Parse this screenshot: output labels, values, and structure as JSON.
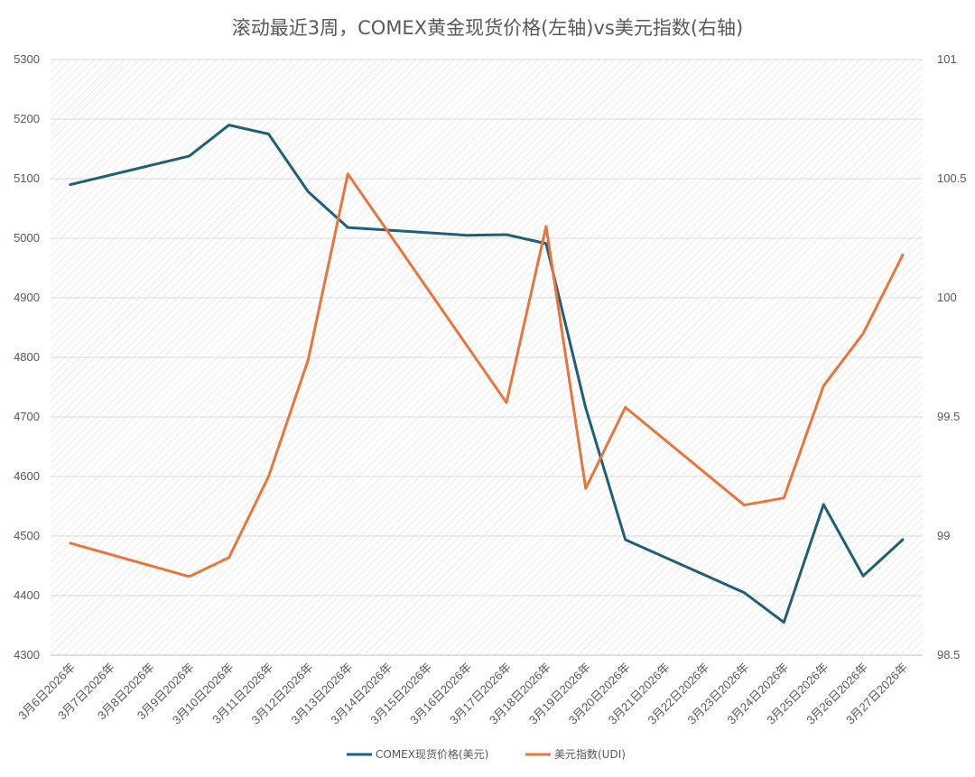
{
  "chart_data": {
    "type": "line",
    "title": "滚动最近3周，COMEX黄金现货价格(左轴)vs美元指数(右轴)",
    "categories": [
      "3月6日2026年",
      "3月7日2026年",
      "3月8日2026年",
      "3月9日2026年",
      "3月10日2026年",
      "3月11日2026年",
      "3月12日2026年",
      "3月13日2026年",
      "3月14日2026年",
      "3月15日2026年",
      "3月16日2026年",
      "3月17日2026年",
      "3月18日2026年",
      "3月19日2026年",
      "3月20日2026年",
      "3月21日2026年",
      "3月22日2026年",
      "3月23日2026年",
      "3月24日2026年",
      "3月25日2026年",
      "3月26日2026年",
      "3月27日2026年"
    ],
    "y_left": {
      "min": 4300,
      "max": 5300,
      "ticks": [
        "4300",
        "4400",
        "4500",
        "4600",
        "4700",
        "4800",
        "4900",
        "5000",
        "5100",
        "5200",
        "5300"
      ]
    },
    "y_right": {
      "min": 98.5,
      "max": 101,
      "ticks": [
        "98.5",
        "99",
        "99.5",
        "100",
        "100.5",
        "101"
      ]
    },
    "grid": true,
    "legend_position": "bottom",
    "series": [
      {
        "name": "COMEX现货价格(美元)",
        "axis": "left",
        "color": "#1f5f7a",
        "points": [
          [
            0,
            5090
          ],
          [
            3,
            5138
          ],
          [
            4,
            5190
          ],
          [
            5,
            5175
          ],
          [
            6,
            5078
          ],
          [
            7,
            5018
          ],
          [
            10,
            5005
          ],
          [
            11,
            5006
          ],
          [
            12,
            4991
          ],
          [
            13,
            4715
          ],
          [
            14,
            4494
          ],
          [
            17,
            4405
          ],
          [
            18,
            4355
          ],
          [
            19,
            4553
          ],
          [
            20,
            4433
          ],
          [
            21,
            4494
          ]
        ]
      },
      {
        "name": "美元指数(UDI)",
        "axis": "right",
        "color": "#e8763a",
        "points": [
          [
            0,
            98.97
          ],
          [
            3,
            98.83
          ],
          [
            4,
            98.91
          ],
          [
            5,
            99.25
          ],
          [
            6,
            99.74
          ],
          [
            7,
            100.52
          ],
          [
            11,
            99.56
          ],
          [
            12,
            100.3
          ],
          [
            13,
            99.2
          ],
          [
            14,
            99.54
          ],
          [
            17,
            99.13
          ],
          [
            18,
            99.16
          ],
          [
            19,
            99.63
          ],
          [
            20,
            99.85
          ],
          [
            21,
            100.18
          ]
        ]
      }
    ]
  }
}
